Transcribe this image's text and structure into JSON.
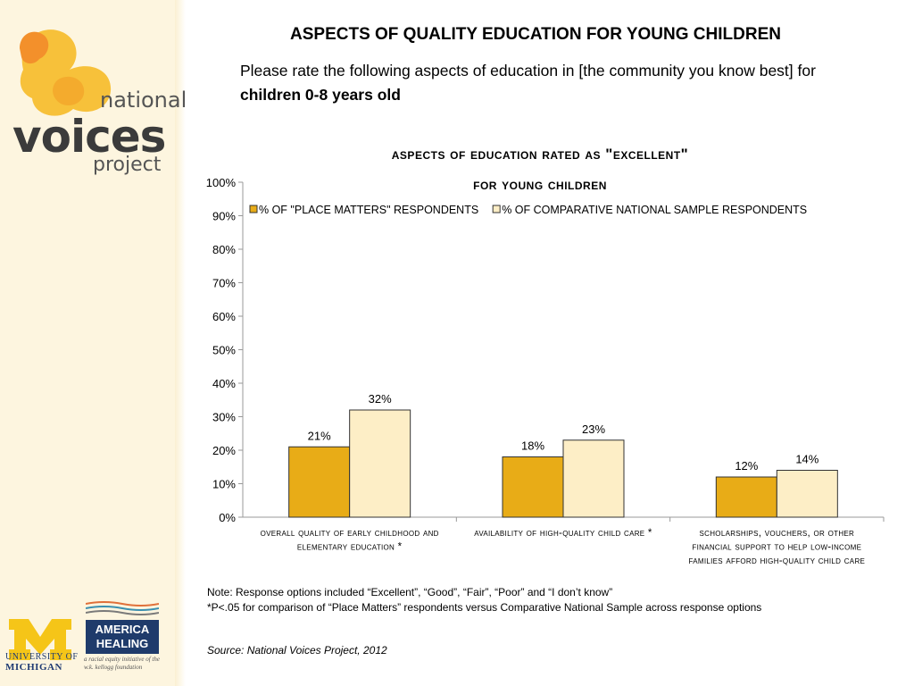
{
  "sidebar": {
    "logo": {
      "line1": "national",
      "line2": "voices",
      "line3": "project"
    },
    "um_logo": {
      "line1": "UNIVERSITY OF",
      "line2": "MICHIGAN"
    },
    "ah_logo": {
      "line1": "AMERICA",
      "line2": "HEALING",
      "tagline": "a racial equity initiative of the w.k. kellogg foundation"
    }
  },
  "header": {
    "title": "ASPECTS OF QUALITY EDUCATION FOR YOUNG CHILDREN",
    "subtitle_prefix": "Please rate the following aspects of education in [the community you know best] for ",
    "subtitle_bold": "children 0-8 years old"
  },
  "chart_data": {
    "type": "bar",
    "title_line1": "aspects of education rated as \"excellent\"",
    "title_line2": "for young children",
    "categories": [
      [
        "overall quality of early childhood and",
        "elementary education *"
      ],
      [
        "availability of high-quality child care *"
      ],
      [
        "scholarships, vouchers, or other",
        "financial support to help low-income",
        "families afford high-quality child care"
      ]
    ],
    "series": [
      {
        "name": "% OF \"PLACE MATTERS\" RESPONDENTS",
        "values": [
          21,
          18,
          12
        ],
        "labels": [
          "21%",
          "18%",
          "12%"
        ],
        "color": "#e8ac17"
      },
      {
        "name": "% OF COMPARATIVE NATIONAL SAMPLE RESPONDENTS",
        "values": [
          32,
          23,
          14
        ],
        "labels": [
          "32%",
          "23%",
          "14%"
        ],
        "color": "#fdeec6"
      }
    ],
    "ylim": [
      0,
      100
    ],
    "yticks": [
      0,
      10,
      20,
      30,
      40,
      50,
      60,
      70,
      80,
      90,
      100
    ],
    "ytick_labels": [
      "0%",
      "10%",
      "20%",
      "30%",
      "40%",
      "50%",
      "60%",
      "70%",
      "80%",
      "90%",
      "100%"
    ],
    "grid": false,
    "legend": "top"
  },
  "footer": {
    "note1": "Note: Response options included “Excellent”, “Good”, “Fair”, “Poor” and “I don’t know”",
    "note2": "*P<.05 for comparison of “Place Matters” respondents versus Comparative National Sample across response options",
    "source": "Source: National Voices Project, 2012"
  }
}
